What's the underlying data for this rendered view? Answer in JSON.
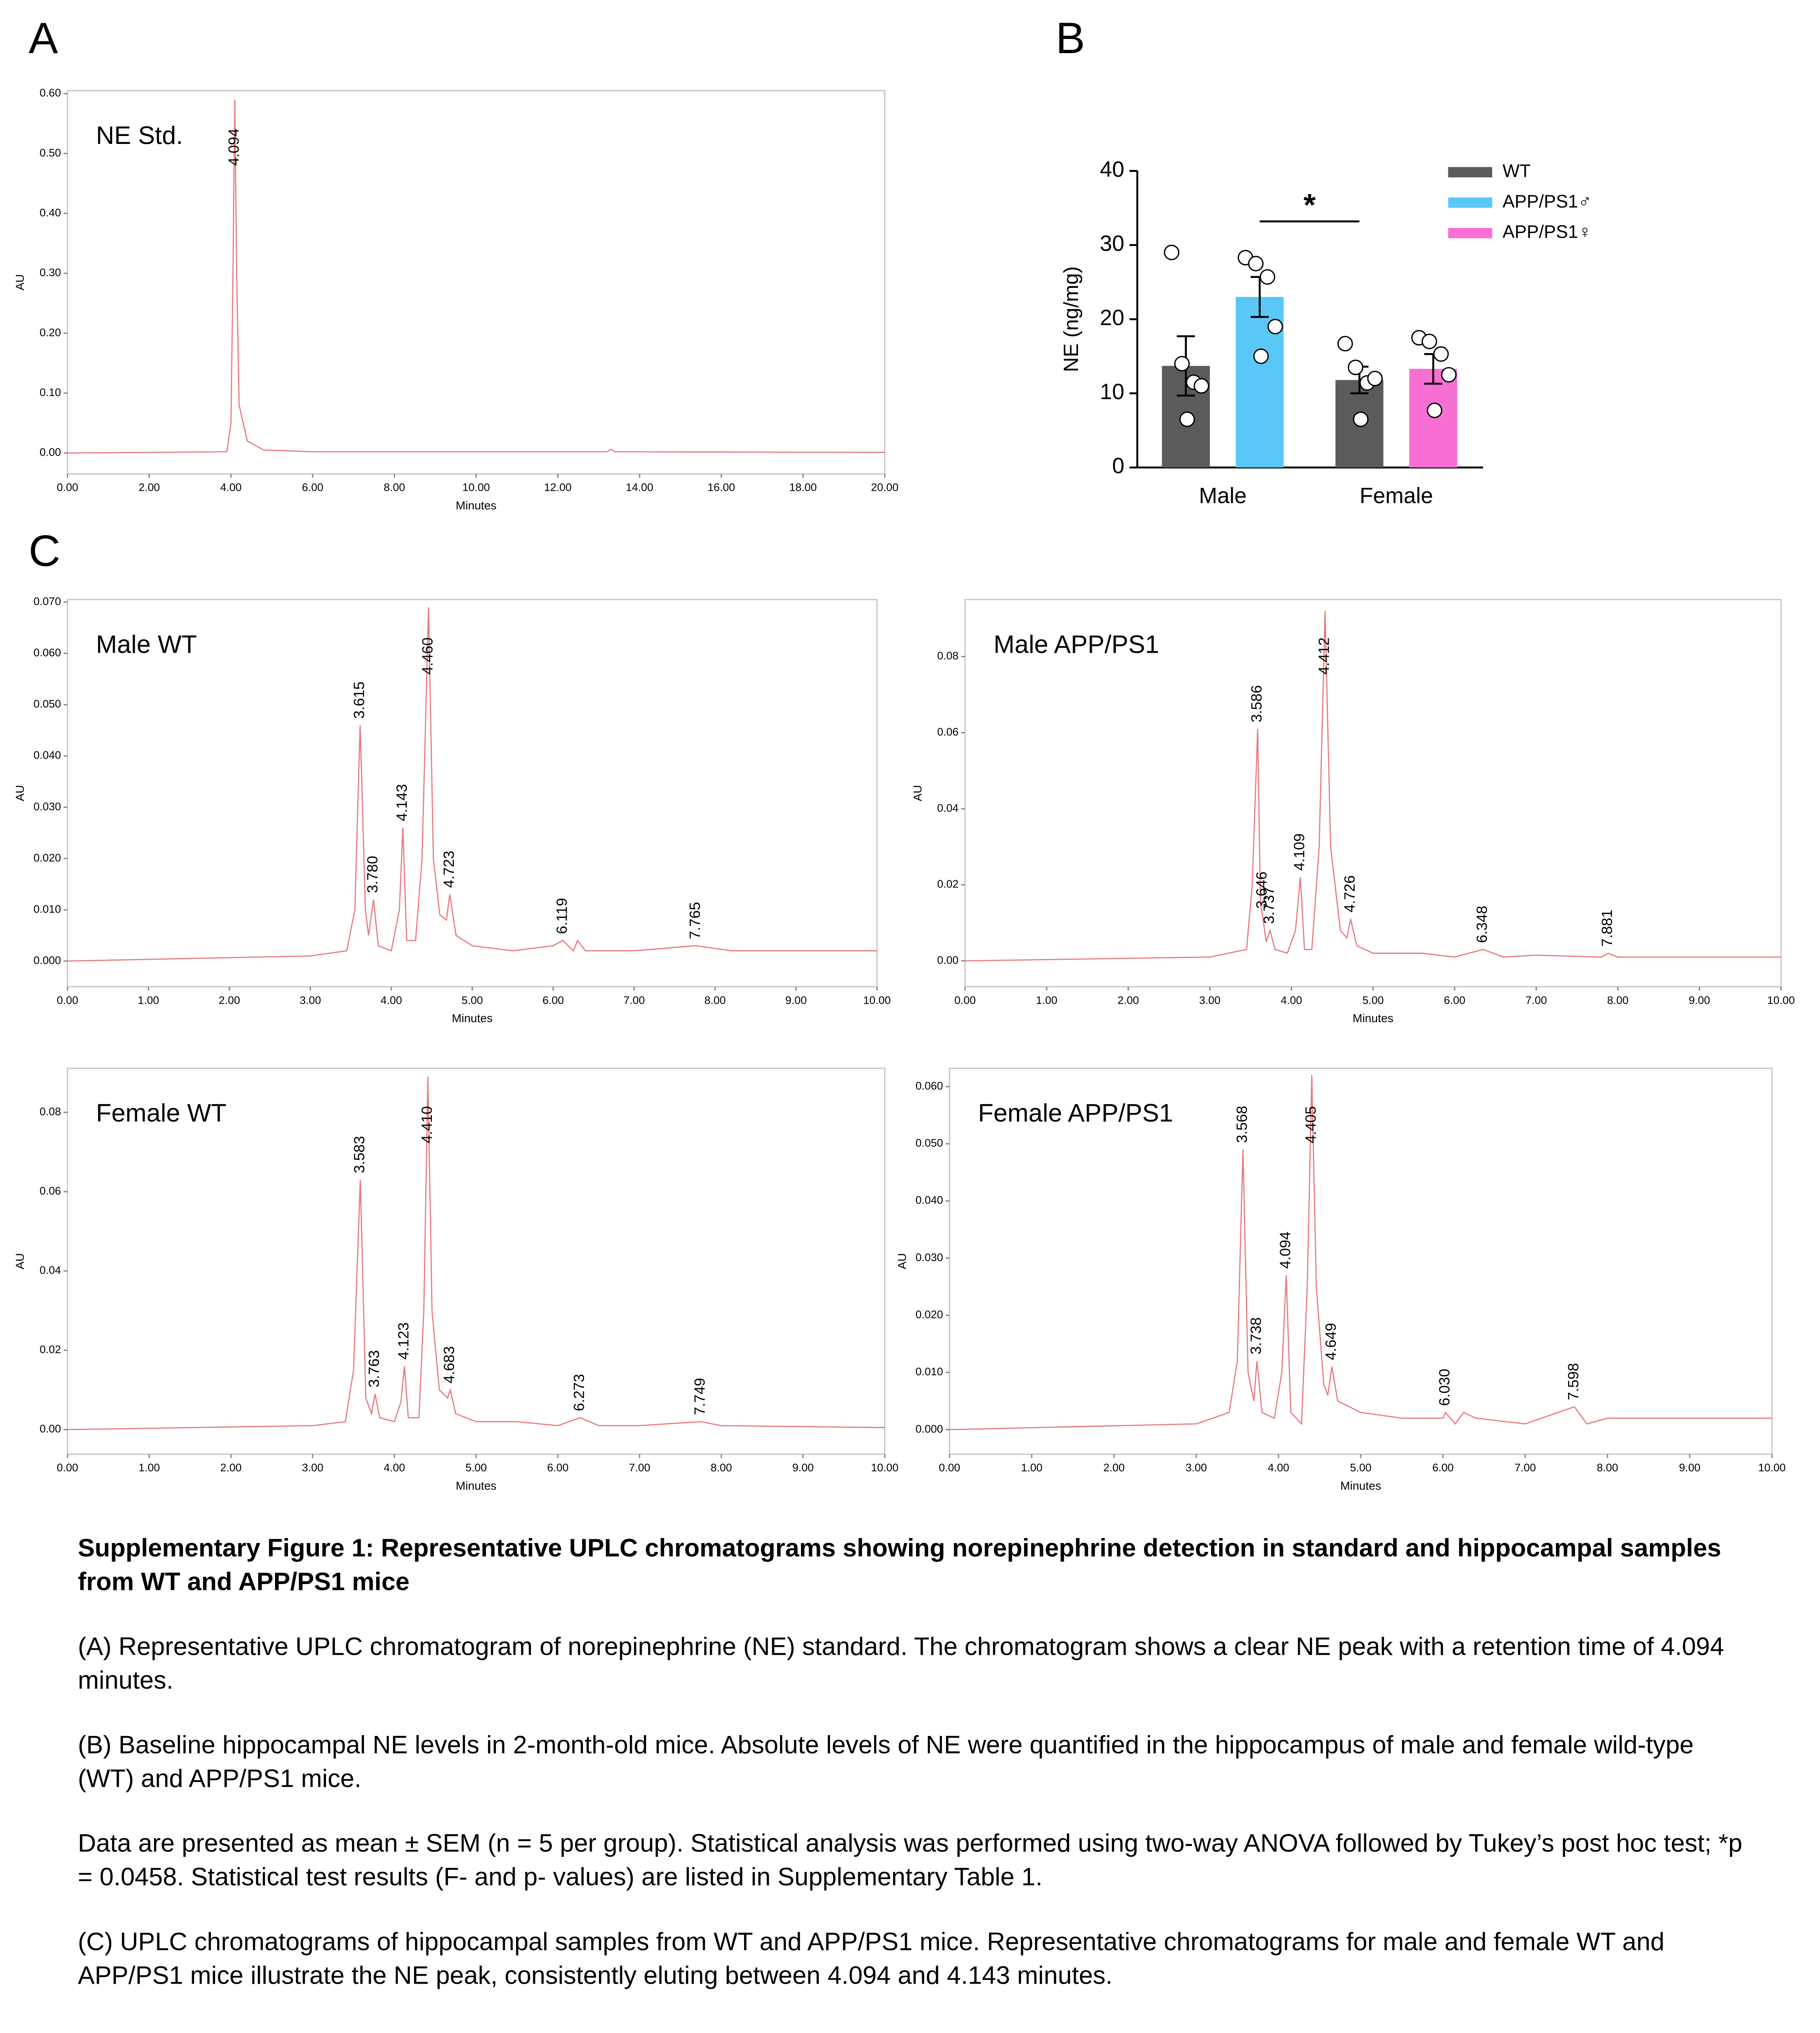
{
  "panel_labels": [
    "A",
    "B",
    "C"
  ],
  "chart_data": [
    {
      "type": "line",
      "title": "NE Std.",
      "xlabel": "Minutes",
      "ylabel": "AU",
      "color": "#e87a7e",
      "x": [
        0,
        3.9,
        4.0,
        4.05,
        4.094,
        4.14,
        4.2,
        4.4,
        4.8,
        6,
        13.2,
        13.3,
        13.4,
        20
      ],
      "values": [
        0,
        0.002,
        0.05,
        0.3,
        0.59,
        0.3,
        0.08,
        0.02,
        0.005,
        0.002,
        0.002,
        0.006,
        0.002,
        0.001
      ],
      "peaks": [
        4.094
      ],
      "xlim": [
        0,
        20
      ],
      "ylim": [
        -0.035,
        0.605
      ],
      "xticks": [
        {
          "value": 0,
          "label": "0.00"
        },
        {
          "value": 2,
          "label": "2.00"
        },
        {
          "value": 4,
          "label": "4.00"
        },
        {
          "value": 6,
          "label": "6.00"
        },
        {
          "value": 8,
          "label": "8.00"
        },
        {
          "value": 10,
          "label": "10.00"
        },
        {
          "value": 12,
          "label": "12.00"
        },
        {
          "value": 14,
          "label": "14.00"
        },
        {
          "value": 16,
          "label": "16.00"
        },
        {
          "value": 18,
          "label": "18.00"
        },
        {
          "value": 20,
          "label": "20.00"
        }
      ],
      "yticks": [
        {
          "value": 0,
          "label": "0.00"
        },
        {
          "value": 0.1,
          "label": "0.10"
        },
        {
          "value": 0.2,
          "label": "0.20"
        },
        {
          "value": 0.3,
          "label": "0.30"
        },
        {
          "value": 0.4,
          "label": "0.40"
        },
        {
          "value": 0.5,
          "label": "0.50"
        },
        {
          "value": 0.6,
          "label": "0.60"
        }
      ]
    },
    {
      "type": "bar",
      "ylabel": "NE (ng/mg)",
      "categories": [
        "Male",
        "Female"
      ],
      "annotation": "*",
      "legend": "right",
      "ylim": [
        0,
        40
      ],
      "yticks": [
        0,
        10,
        20,
        30,
        40
      ],
      "series": [
        {
          "name": "WT",
          "color": "#5b5b5b",
          "values": [
            13.7,
            11.8
          ],
          "errors": [
            4,
            1.8
          ],
          "points": [
            [
              29,
              14,
              11.5,
              11,
              6.5
            ],
            [
              16.7,
              13.5,
              11.4,
              12,
              6.5
            ]
          ]
        },
        {
          "name": "APP/PS1♂",
          "color": "#5ac8f7",
          "values": [
            23,
            null
          ],
          "errors": [
            2.7,
            null
          ],
          "points": [
            [
              28.3,
              27.5,
              25.7,
              19,
              15
            ],
            null
          ]
        },
        {
          "name": "APP/PS1♀",
          "color": "#f86fd3",
          "values": [
            null,
            13.3
          ],
          "errors": [
            null,
            2
          ],
          "points": [
            null,
            [
              17.5,
              17,
              15.3,
              12.5,
              7.7
            ]
          ]
        }
      ]
    },
    {
      "type": "line",
      "title": "Male WT",
      "xlabel": "Minutes",
      "ylabel": "AU",
      "color": "#e87a7e",
      "x": [
        0,
        3,
        3.45,
        3.55,
        3.615,
        3.68,
        3.72,
        3.78,
        3.84,
        4.0,
        4.1,
        4.143,
        4.19,
        4.3,
        4.38,
        4.46,
        4.52,
        4.6,
        4.68,
        4.723,
        4.8,
        5.0,
        5.5,
        6.0,
        6.119,
        6.25,
        6.3,
        6.4,
        7.0,
        7.765,
        8.2,
        10
      ],
      "values": [
        0,
        0.001,
        0.002,
        0.01,
        0.046,
        0.01,
        0.005,
        0.012,
        0.003,
        0.002,
        0.01,
        0.026,
        0.004,
        0.004,
        0.02,
        0.069,
        0.02,
        0.009,
        0.008,
        0.013,
        0.005,
        0.003,
        0.002,
        0.003,
        0.004,
        0.002,
        0.004,
        0.002,
        0.002,
        0.003,
        0.002,
        0.002
      ],
      "peaks": [
        3.615,
        {
          "value": 3.78,
          "label": "3.780"
        },
        4.143,
        {
          "value": 4.46,
          "label": "4.460"
        },
        4.723,
        6.119,
        7.765
      ],
      "xlim": [
        0,
        10
      ],
      "ylim": [
        -0.005,
        0.0705
      ],
      "xticks": [
        {
          "value": 0,
          "label": "0.00"
        },
        {
          "value": 1,
          "label": "1.00"
        },
        {
          "value": 2,
          "label": "2.00"
        },
        {
          "value": 3,
          "label": "3.00"
        },
        {
          "value": 4,
          "label": "4.00"
        },
        {
          "value": 5,
          "label": "5.00"
        },
        {
          "value": 6,
          "label": "6.00"
        },
        {
          "value": 7,
          "label": "7.00"
        },
        {
          "value": 8,
          "label": "8.00"
        },
        {
          "value": 9,
          "label": "9.00"
        },
        {
          "value": 10,
          "label": "10.00"
        }
      ],
      "yticks": [
        {
          "value": 0,
          "label": "0.000"
        },
        {
          "value": 0.01,
          "label": "0.010"
        },
        {
          "value": 0.02,
          "label": "0.020"
        },
        {
          "value": 0.03,
          "label": "0.030"
        },
        {
          "value": 0.04,
          "label": "0.040"
        },
        {
          "value": 0.05,
          "label": "0.050"
        },
        {
          "value": 0.06,
          "label": "0.060"
        },
        {
          "value": 0.07,
          "label": "0.070"
        }
      ]
    },
    {
      "type": "line",
      "title": "Male APP/PS1",
      "xlabel": "Minutes",
      "ylabel": "AU",
      "color": "#e87a7e",
      "x": [
        0,
        3.0,
        3.45,
        3.52,
        3.586,
        3.62,
        3.646,
        3.69,
        3.737,
        3.8,
        3.95,
        4.05,
        4.109,
        4.16,
        4.25,
        4.34,
        4.412,
        4.48,
        4.6,
        4.68,
        4.726,
        4.8,
        5.0,
        5.6,
        6.0,
        6.348,
        6.6,
        7.0,
        7.8,
        7.881,
        8.0,
        10
      ],
      "values": [
        0,
        0.001,
        0.003,
        0.02,
        0.061,
        0.015,
        0.012,
        0.005,
        0.008,
        0.003,
        0.002,
        0.008,
        0.022,
        0.003,
        0.003,
        0.03,
        0.092,
        0.03,
        0.008,
        0.006,
        0.011,
        0.004,
        0.002,
        0.002,
        0.001,
        0.003,
        0.001,
        0.0015,
        0.001,
        0.002,
        0.001,
        0.001
      ],
      "peaks": [
        3.586,
        3.646,
        3.737,
        4.109,
        4.412,
        4.726,
        6.348,
        7.881
      ],
      "xlim": [
        0,
        10
      ],
      "ylim": [
        -0.0068,
        0.095
      ],
      "xticks": [
        {
          "value": 0,
          "label": "0.00"
        },
        {
          "value": 1,
          "label": "1.00"
        },
        {
          "value": 2,
          "label": "2.00"
        },
        {
          "value": 3,
          "label": "3.00"
        },
        {
          "value": 4,
          "label": "4.00"
        },
        {
          "value": 5,
          "label": "5.00"
        },
        {
          "value": 6,
          "label": "6.00"
        },
        {
          "value": 7,
          "label": "7.00"
        },
        {
          "value": 8,
          "label": "8.00"
        },
        {
          "value": 9,
          "label": "9.00"
        },
        {
          "value": 10,
          "label": "10.00"
        }
      ],
      "yticks": [
        {
          "value": 0,
          "label": "0.00"
        },
        {
          "value": 0.02,
          "label": "0.02"
        },
        {
          "value": 0.04,
          "label": "0.04"
        },
        {
          "value": 0.06,
          "label": "0.06"
        },
        {
          "value": 0.08,
          "label": "0.08"
        }
      ]
    },
    {
      "type": "line",
      "title": "Female WT",
      "xlabel": "Minutes",
      "ylabel": "AU",
      "color": "#e87a7e",
      "x": [
        0,
        3.0,
        3.4,
        3.5,
        3.583,
        3.65,
        3.72,
        3.763,
        3.82,
        4.0,
        4.08,
        4.123,
        4.17,
        4.3,
        4.36,
        4.41,
        4.46,
        4.55,
        4.65,
        4.683,
        4.75,
        5.0,
        5.5,
        6.0,
        6.273,
        6.5,
        7.0,
        7.749,
        8.0,
        10
      ],
      "values": [
        0,
        0.001,
        0.002,
        0.015,
        0.063,
        0.008,
        0.004,
        0.009,
        0.003,
        0.002,
        0.007,
        0.016,
        0.003,
        0.003,
        0.03,
        0.089,
        0.03,
        0.01,
        0.008,
        0.01,
        0.004,
        0.002,
        0.002,
        0.001,
        0.003,
        0.001,
        0.001,
        0.002,
        0.001,
        0.0005
      ],
      "peaks": [
        3.583,
        3.763,
        4.123,
        {
          "value": 4.41,
          "label": "4.410"
        },
        4.683,
        6.273,
        7.749
      ],
      "xlim": [
        0,
        10
      ],
      "ylim": [
        -0.0062,
        0.0911
      ],
      "xticks": [
        {
          "value": 0,
          "label": "0.00"
        },
        {
          "value": 1,
          "label": "1.00"
        },
        {
          "value": 2,
          "label": "2.00"
        },
        {
          "value": 3,
          "label": "3.00"
        },
        {
          "value": 4,
          "label": "4.00"
        },
        {
          "value": 5,
          "label": "5.00"
        },
        {
          "value": 6,
          "label": "6.00"
        },
        {
          "value": 7,
          "label": "7.00"
        },
        {
          "value": 8,
          "label": "8.00"
        },
        {
          "value": 9,
          "label": "9.00"
        },
        {
          "value": 10,
          "label": "10.00"
        }
      ],
      "yticks": [
        {
          "value": 0,
          "label": "0.00"
        },
        {
          "value": 0.02,
          "label": "0.02"
        },
        {
          "value": 0.04,
          "label": "0.04"
        },
        {
          "value": 0.06,
          "label": "0.06"
        },
        {
          "value": 0.08,
          "label": "0.08"
        }
      ]
    },
    {
      "type": "line",
      "title": "Female APP/PS1",
      "xlabel": "Minutes",
      "ylabel": "AU",
      "color": "#e87a7e",
      "x": [
        0,
        3.0,
        3.4,
        3.5,
        3.568,
        3.63,
        3.7,
        3.738,
        3.8,
        3.95,
        4.04,
        4.094,
        4.15,
        4.28,
        4.35,
        4.405,
        4.46,
        4.55,
        4.6,
        4.649,
        4.72,
        5.0,
        5.5,
        6.0,
        6.03,
        6.15,
        6.25,
        6.4,
        7.0,
        7.598,
        7.75,
        8.0,
        10
      ],
      "values": [
        0,
        0.001,
        0.003,
        0.012,
        0.049,
        0.01,
        0.005,
        0.012,
        0.003,
        0.002,
        0.01,
        0.027,
        0.003,
        0.001,
        0.025,
        0.062,
        0.025,
        0.008,
        0.006,
        0.011,
        0.005,
        0.003,
        0.002,
        0.002,
        0.003,
        0.001,
        0.003,
        0.002,
        0.001,
        0.004,
        0.001,
        0.002,
        0.002
      ],
      "peaks": [
        3.568,
        3.738,
        4.094,
        4.405,
        4.649,
        {
          "value": 6.03,
          "label": "6.030"
        },
        7.598
      ],
      "xlim": [
        0,
        10
      ],
      "ylim": [
        -0.0043,
        0.0632
      ],
      "xticks": [
        {
          "value": 0,
          "label": "0.00"
        },
        {
          "value": 1,
          "label": "1.00"
        },
        {
          "value": 2,
          "label": "2.00"
        },
        {
          "value": 3,
          "label": "3.00"
        },
        {
          "value": 4,
          "label": "4.00"
        },
        {
          "value": 5,
          "label": "5.00"
        },
        {
          "value": 6,
          "label": "6.00"
        },
        {
          "value": 7,
          "label": "7.00"
        },
        {
          "value": 8,
          "label": "8.00"
        },
        {
          "value": 9,
          "label": "9.00"
        },
        {
          "value": 10,
          "label": "10.00"
        }
      ],
      "yticks": [
        {
          "value": 0,
          "label": "0.000"
        },
        {
          "value": 0.01,
          "label": "0.010"
        },
        {
          "value": 0.02,
          "label": "0.020"
        },
        {
          "value": 0.03,
          "label": "0.030"
        },
        {
          "value": 0.04,
          "label": "0.040"
        },
        {
          "value": 0.05,
          "label": "0.050"
        },
        {
          "value": 0.06,
          "label": "0.060"
        }
      ]
    }
  ],
  "caption": {
    "title": "Supplementary Figure 1: Representative UPLC chromatograms showing norepinephrine detection in standard and hippocampal samples from WT and APP/PS1 mice",
    "paragraphs": [
      "(A) Representative UPLC chromatogram of norepinephrine (NE) standard. The chromatogram shows a clear NE peak with a retention time of 4.094 minutes.",
      "(B) Baseline hippocampal NE levels in 2-month-old mice. Absolute levels of NE were quantified in the hippocampus of male and female wild-type (WT) and APP/PS1 mice.",
      "Data are presented as mean ± SEM (n = 5 per group). Statistical analysis was performed using two-way ANOVA followed by Tukey’s post hoc test; *p = 0.0458. Statistical test results (F- and p- values) are listed in Supplementary Table 1.",
      "(C) UPLC chromatograms of hippocampal samples from WT and APP/PS1 mice. Representative chromatograms for male and female WT and APP/PS1 mice illustrate the NE peak, consistently eluting between 4.094 and 4.143 minutes."
    ]
  }
}
